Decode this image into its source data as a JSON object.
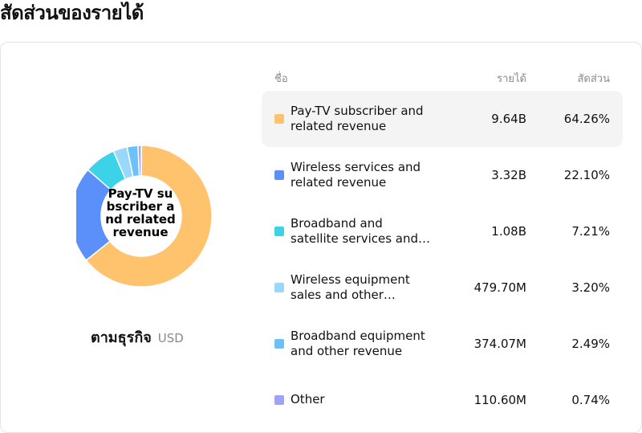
{
  "page": {
    "title": "สัดส่วนของรายได้"
  },
  "chart_caption": {
    "label": "ตามธุรกิจ",
    "unit": "USD"
  },
  "donut_center": "Pay-TV subscriber and related revenue",
  "table": {
    "headers": {
      "name": "ชื่อ",
      "revenue": "รายได้",
      "share": "สัดส่วน"
    },
    "rows": [
      {
        "name_l1": "Pay-TV subscriber and",
        "name_l2": "related revenue",
        "revenue": "9.64B",
        "share": "64.26%",
        "color": "#FFC36E"
      },
      {
        "name_l1": "Wireless services and",
        "name_l2": "related revenue",
        "revenue": "3.32B",
        "share": "22.10%",
        "color": "#5B8FF9"
      },
      {
        "name_l1": "Broadband and",
        "name_l2": "satellite services and…",
        "revenue": "1.08B",
        "share": "7.21%",
        "color": "#3CD3E8"
      },
      {
        "name_l1": "Wireless equipment",
        "name_l2": "sales and other…",
        "revenue": "479.70M",
        "share": "3.20%",
        "color": "#9AD8FB"
      },
      {
        "name_l1": "Broadband equipment",
        "name_l2": "and other revenue",
        "revenue": "374.07M",
        "share": "2.49%",
        "color": "#6CC2F8"
      },
      {
        "name_l1": "Other",
        "name_l2": "",
        "revenue": "110.60M",
        "share": "0.74%",
        "color": "#A0A3F5"
      }
    ]
  },
  "chart_data": {
    "type": "pie",
    "variant": "donut",
    "title": "",
    "unit": "USD",
    "categories": [
      "Pay-TV subscriber and related revenue",
      "Wireless services and related revenue",
      "Broadband and satellite services and…",
      "Wireless equipment sales and other…",
      "Broadband equipment and other revenue",
      "Other"
    ],
    "values": [
      64.26,
      22.1,
      7.21,
      3.2,
      2.49,
      0.74
    ],
    "colors": [
      "#FFC36E",
      "#5B8FF9",
      "#3CD3E8",
      "#9AD8FB",
      "#6CC2F8",
      "#A0A3F5"
    ]
  }
}
